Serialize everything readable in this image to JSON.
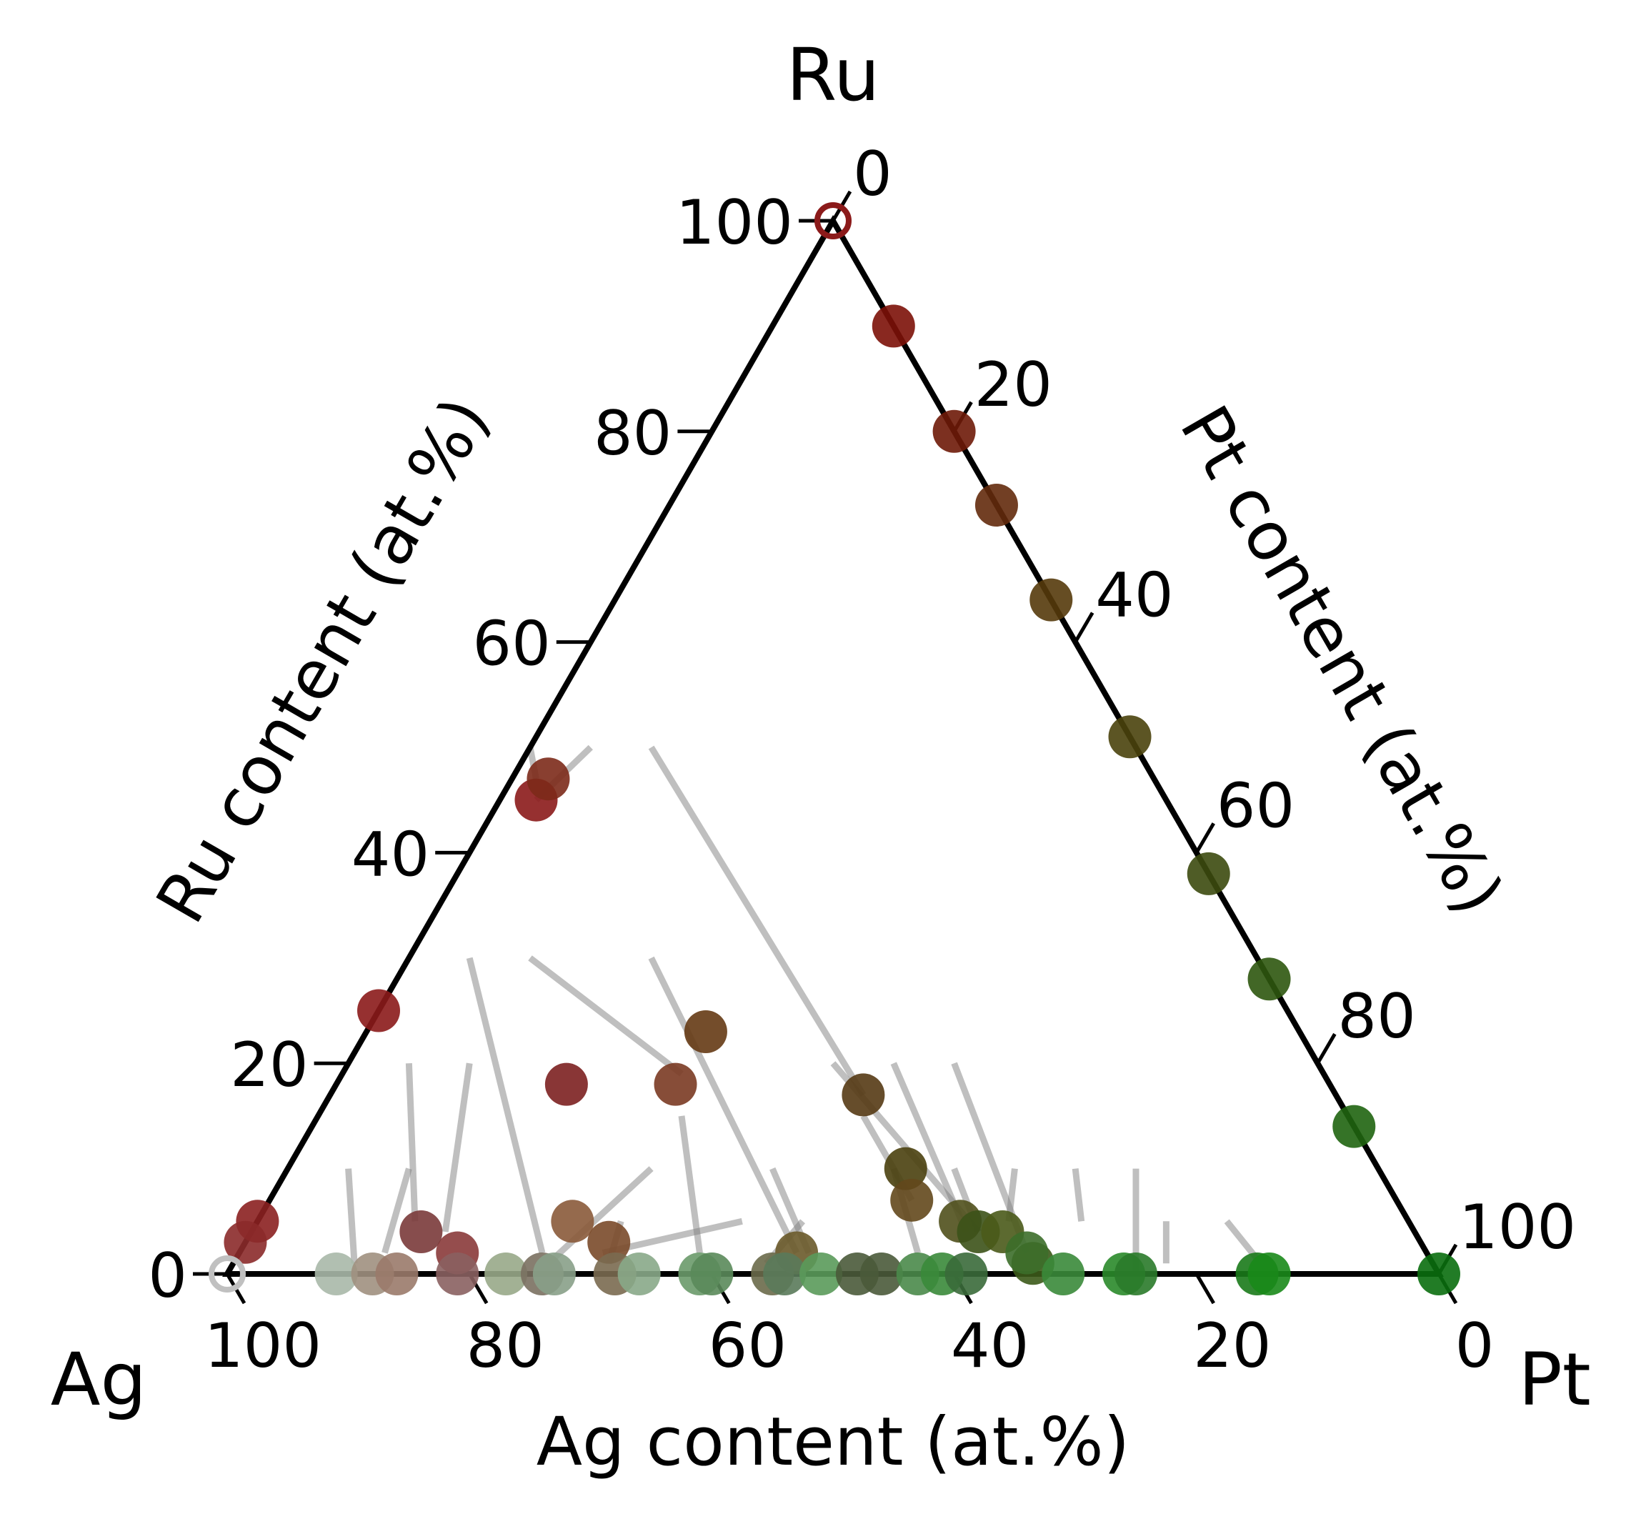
{
  "chart_data": {
    "type": "scatter",
    "subtype": "ternary",
    "vertices": {
      "bottom_left": "Ag",
      "bottom_right": "Pt",
      "top": "Ru"
    },
    "axes": {
      "ag": {
        "label": "Ag content (at.%)",
        "ticks": [
          "100",
          "80",
          "60",
          "40",
          "20",
          "0"
        ]
      },
      "ru": {
        "label": "Ru content (at.%)",
        "ticks": [
          "0",
          "20",
          "40",
          "60",
          "80",
          "100"
        ]
      },
      "pt": {
        "label": "Pt content (at.%)",
        "ticks": [
          "0",
          "20",
          "40",
          "60",
          "80",
          "100"
        ]
      }
    },
    "range": [
      0,
      100
    ],
    "units": "at.%",
    "points_format": "[Ag, Pt, Ru] in at.%",
    "points": [
      {
        "c": [
          0,
          0,
          100
        ],
        "color": "#8b1a1a",
        "hollow": true
      },
      {
        "c": [
          0,
          10,
          90
        ],
        "color": "#7c1108"
      },
      {
        "c": [
          0,
          20,
          80
        ],
        "color": "#6e1a08"
      },
      {
        "c": [
          0,
          27,
          73
        ],
        "color": "#632a0c"
      },
      {
        "c": [
          0,
          36,
          64
        ],
        "color": "#553a0b"
      },
      {
        "c": [
          0,
          49,
          51
        ],
        "color": "#4a430c"
      },
      {
        "c": [
          0,
          62,
          38
        ],
        "color": "#3c4a0e"
      },
      {
        "c": [
          0,
          72,
          28
        ],
        "color": "#2e560e"
      },
      {
        "c": [
          0,
          86,
          14
        ],
        "color": "#1f6410"
      },
      {
        "c": [
          0,
          100,
          0
        ],
        "color": "#0a6e0e"
      },
      {
        "c": [
          75,
          0,
          25
        ],
        "color": "#8b1a1a"
      },
      {
        "c": [
          95,
          0,
          5
        ],
        "color": "#8b2020"
      },
      {
        "c": [
          97,
          0,
          3
        ],
        "color": "#8b2a2a"
      },
      {
        "c": [
          52,
          3,
          45
        ],
        "color": "#8b1a1a"
      },
      {
        "c": [
          50,
          3,
          47
        ],
        "color": "#7c2a1a"
      },
      {
        "c": [
          63,
          19,
          18
        ],
        "color": "#7c2020"
      },
      {
        "c": [
          54,
          28,
          18
        ],
        "color": "#7a3a22"
      },
      {
        "c": [
          49,
          28,
          23
        ],
        "color": "#653a14"
      },
      {
        "c": [
          39,
          44,
          17
        ],
        "color": "#553a14"
      },
      {
        "c": [
          39,
          51,
          10
        ],
        "color": "#4a400e"
      },
      {
        "c": [
          40,
          53,
          7
        ],
        "color": "#63481c"
      },
      {
        "c": [
          37,
          58,
          5
        ],
        "color": "#50501c"
      },
      {
        "c": [
          36,
          60,
          4
        ],
        "color": "#3c5218"
      },
      {
        "c": [
          34,
          62,
          4
        ],
        "color": "#4a5a1a"
      },
      {
        "c": [
          33,
          66,
          1
        ],
        "color": "#3c5a1a"
      },
      {
        "c": [
          33,
          65,
          2
        ],
        "color": "#3c6e2a"
      },
      {
        "c": [
          80,
          18,
          2
        ],
        "color": "#8a3a3a"
      },
      {
        "c": [
          82,
          14,
          4
        ],
        "color": "#7a3a3a"
      },
      {
        "c": [
          69,
          26,
          5
        ],
        "color": "#8a5a3a"
      },
      {
        "c": [
          67,
          30,
          3
        ],
        "color": "#7a4a2a"
      },
      {
        "c": [
          52,
          46,
          2
        ],
        "color": "#6a5a2a"
      },
      {
        "c": [
          100,
          0,
          0
        ],
        "color": "#c0c0c0",
        "hollow": true
      },
      {
        "c": [
          91,
          9,
          0
        ],
        "color": "#a8b8a8"
      },
      {
        "c": [
          88,
          12,
          0
        ],
        "color": "#a09080"
      },
      {
        "c": [
          86,
          14,
          0
        ],
        "color": "#9a7a6a"
      },
      {
        "c": [
          81,
          19,
          0
        ],
        "color": "#8a6060"
      },
      {
        "c": [
          77,
          23,
          0
        ],
        "color": "#98a888"
      },
      {
        "c": [
          74,
          26,
          0
        ],
        "color": "#7a7060"
      },
      {
        "c": [
          73,
          27,
          0
        ],
        "color": "#88a088"
      },
      {
        "c": [
          68,
          32,
          0
        ],
        "color": "#7a6a50"
      },
      {
        "c": [
          66,
          34,
          0
        ],
        "color": "#88a888"
      },
      {
        "c": [
          61,
          39,
          0
        ],
        "color": "#6a9a6a"
      },
      {
        "c": [
          60,
          40,
          0
        ],
        "color": "#5a8a5a"
      },
      {
        "c": [
          55,
          45,
          0
        ],
        "color": "#6a6a4a"
      },
      {
        "c": [
          54,
          46,
          0
        ],
        "color": "#5a7a5a"
      },
      {
        "c": [
          51,
          49,
          0
        ],
        "color": "#5a9a5a"
      },
      {
        "c": [
          48,
          52,
          0
        ],
        "color": "#4a5a3a"
      },
      {
        "c": [
          46,
          54,
          0
        ],
        "color": "#4a5a3a"
      },
      {
        "c": [
          43,
          57,
          0
        ],
        "color": "#4a8a4a"
      },
      {
        "c": [
          41,
          59,
          0
        ],
        "color": "#3a8a3a"
      },
      {
        "c": [
          39,
          61,
          0
        ],
        "color": "#3a6a3a"
      },
      {
        "c": [
          31,
          69,
          0
        ],
        "color": "#3a8a3a"
      },
      {
        "c": [
          26,
          74,
          0
        ],
        "color": "#2a8a2a"
      },
      {
        "c": [
          25,
          75,
          0
        ],
        "color": "#2a7a2a"
      },
      {
        "c": [
          15,
          85,
          0
        ],
        "color": "#1a7a1a"
      },
      {
        "c": [
          14,
          86,
          0
        ],
        "color": "#1a8a1a"
      }
    ],
    "tie_lines_format": "[[Ag, Pt, Ru] start, [Ag, Pt, Ru] end]",
    "tie_lines": [
      [
        [
          50,
          0,
          50
        ],
        [
          51,
          2,
          47
        ]
      ],
      [
        [
          45,
          5,
          50
        ],
        [
          52,
          3,
          45
        ]
      ],
      [
        [
          60,
          10,
          30
        ],
        [
          53,
          28,
          19
        ]
      ],
      [
        [
          40,
          10,
          50
        ],
        [
          39,
          44,
          17
        ]
      ],
      [
        [
          65,
          5,
          30
        ],
        [
          73,
          25,
          2
        ]
      ],
      [
        [
          75,
          5,
          20
        ],
        [
          82,
          13,
          5
        ]
      ],
      [
        [
          50,
          20,
          30
        ],
        [
          52,
          46,
          2
        ]
      ],
      [
        [
          60,
          30,
          10
        ],
        [
          73,
          26,
          1
        ]
      ],
      [
        [
          40,
          40,
          20
        ],
        [
          36,
          60,
          4
        ]
      ],
      [
        [
          30,
          50,
          20
        ],
        [
          33,
          65,
          2
        ]
      ],
      [
        [
          35,
          45,
          20
        ],
        [
          37,
          59,
          4
        ]
      ],
      [
        [
          85,
          5,
          10
        ],
        [
          89,
          10,
          1
        ]
      ],
      [
        [
          50,
          40,
          10
        ],
        [
          51,
          47,
          2
        ]
      ],
      [
        [
          20,
          70,
          10
        ],
        [
          25,
          75,
          0
        ]
      ],
      [
        [
          40,
          50,
          10
        ],
        [
          42,
          56,
          2
        ]
      ],
      [
        [
          70,
          10,
          20
        ],
        [
          80,
          16,
          4
        ]
      ],
      [
        [
          55,
          40,
          5
        ],
        [
          68,
          30,
          2
        ]
      ],
      [
        [
          80,
          10,
          10
        ],
        [
          86,
          12,
          2
        ]
      ],
      [
        [
          35,
          55,
          10
        ],
        [
          36,
          60,
          4
        ]
      ],
      [
        [
          40,
          45,
          15
        ],
        [
          40,
          53,
          7
        ]
      ],
      [
        [
          30,
          60,
          10
        ],
        [
          33,
          62,
          5
        ]
      ],
      [
        [
          25,
          65,
          10
        ],
        [
          27,
          68,
          5
        ]
      ],
      [
        [
          15,
          80,
          5
        ],
        [
          14,
          86,
          0
        ]
      ],
      [
        [
          20,
          75,
          5
        ],
        [
          22,
          77,
          1
        ]
      ],
      [
        [
          65,
          30,
          5
        ],
        [
          68,
          31,
          1
        ]
      ],
      [
        [
          50,
          45,
          5
        ],
        [
          55,
          44,
          1
        ]
      ],
      [
        [
          55,
          30,
          15
        ],
        [
          60,
          38,
          2
        ]
      ]
    ]
  }
}
